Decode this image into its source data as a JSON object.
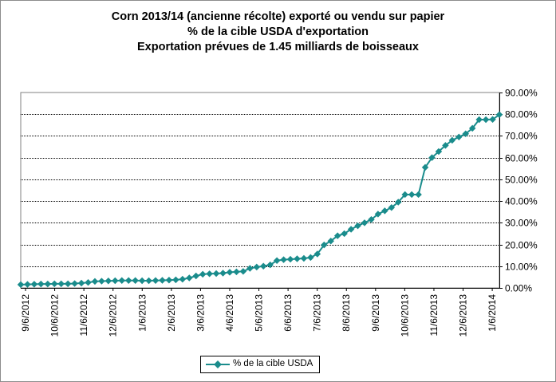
{
  "chart_data": {
    "type": "line",
    "title": [
      "Corn 2013/14 (ancienne récolte) exporté ou vendu sur papier",
      "% de la cible USDA d'exportation",
      "Exportation prévues de 1.45 milliards de boisseaux"
    ],
    "xlabel": "",
    "ylabel": "",
    "ylim": [
      0,
      90
    ],
    "y_ticks": [
      "0.00%",
      "10.00%",
      "20.00%",
      "30.00%",
      "40.00%",
      "50.00%",
      "60.00%",
      "70.00%",
      "80.00%",
      "90.00%"
    ],
    "x_ticks": [
      "9/6/2012",
      "10/6/2012",
      "11/6/2012",
      "12/6/2012",
      "1/6/2013",
      "2/6/2013",
      "3/6/2013",
      "4/6/2013",
      "5/6/2013",
      "6/6/2013",
      "7/6/2013",
      "8/6/2013",
      "9/6/2013",
      "10/6/2013",
      "11/6/2013",
      "12/6/2013",
      "1/6/2014"
    ],
    "grid": true,
    "legend": "bottom-center",
    "series": [
      {
        "name": "% de la cible USDA",
        "color": "#1a8c8c",
        "values": [
          1.5,
          1.6,
          1.7,
          1.8,
          1.8,
          1.9,
          1.9,
          1.9,
          2.0,
          2.2,
          2.5,
          3.0,
          3.1,
          3.2,
          3.3,
          3.4,
          3.4,
          3.4,
          3.3,
          3.3,
          3.4,
          3.5,
          3.6,
          3.7,
          4.0,
          4.6,
          5.5,
          6.3,
          6.5,
          6.6,
          6.8,
          7.2,
          7.4,
          7.6,
          9.0,
          9.6,
          10.0,
          10.6,
          12.6,
          13.0,
          13.2,
          13.4,
          13.6,
          14.0,
          15.6,
          19.8,
          21.6,
          24.0,
          25.0,
          27.0,
          28.6,
          30.0,
          31.5,
          34.0,
          35.5,
          37.0,
          39.5,
          43.0,
          43.0,
          43.0,
          55.5,
          60.0,
          62.8,
          65.6,
          68.0,
          69.5,
          71.0,
          73.5,
          77.5,
          77.5,
          77.6,
          79.8
        ]
      }
    ]
  }
}
